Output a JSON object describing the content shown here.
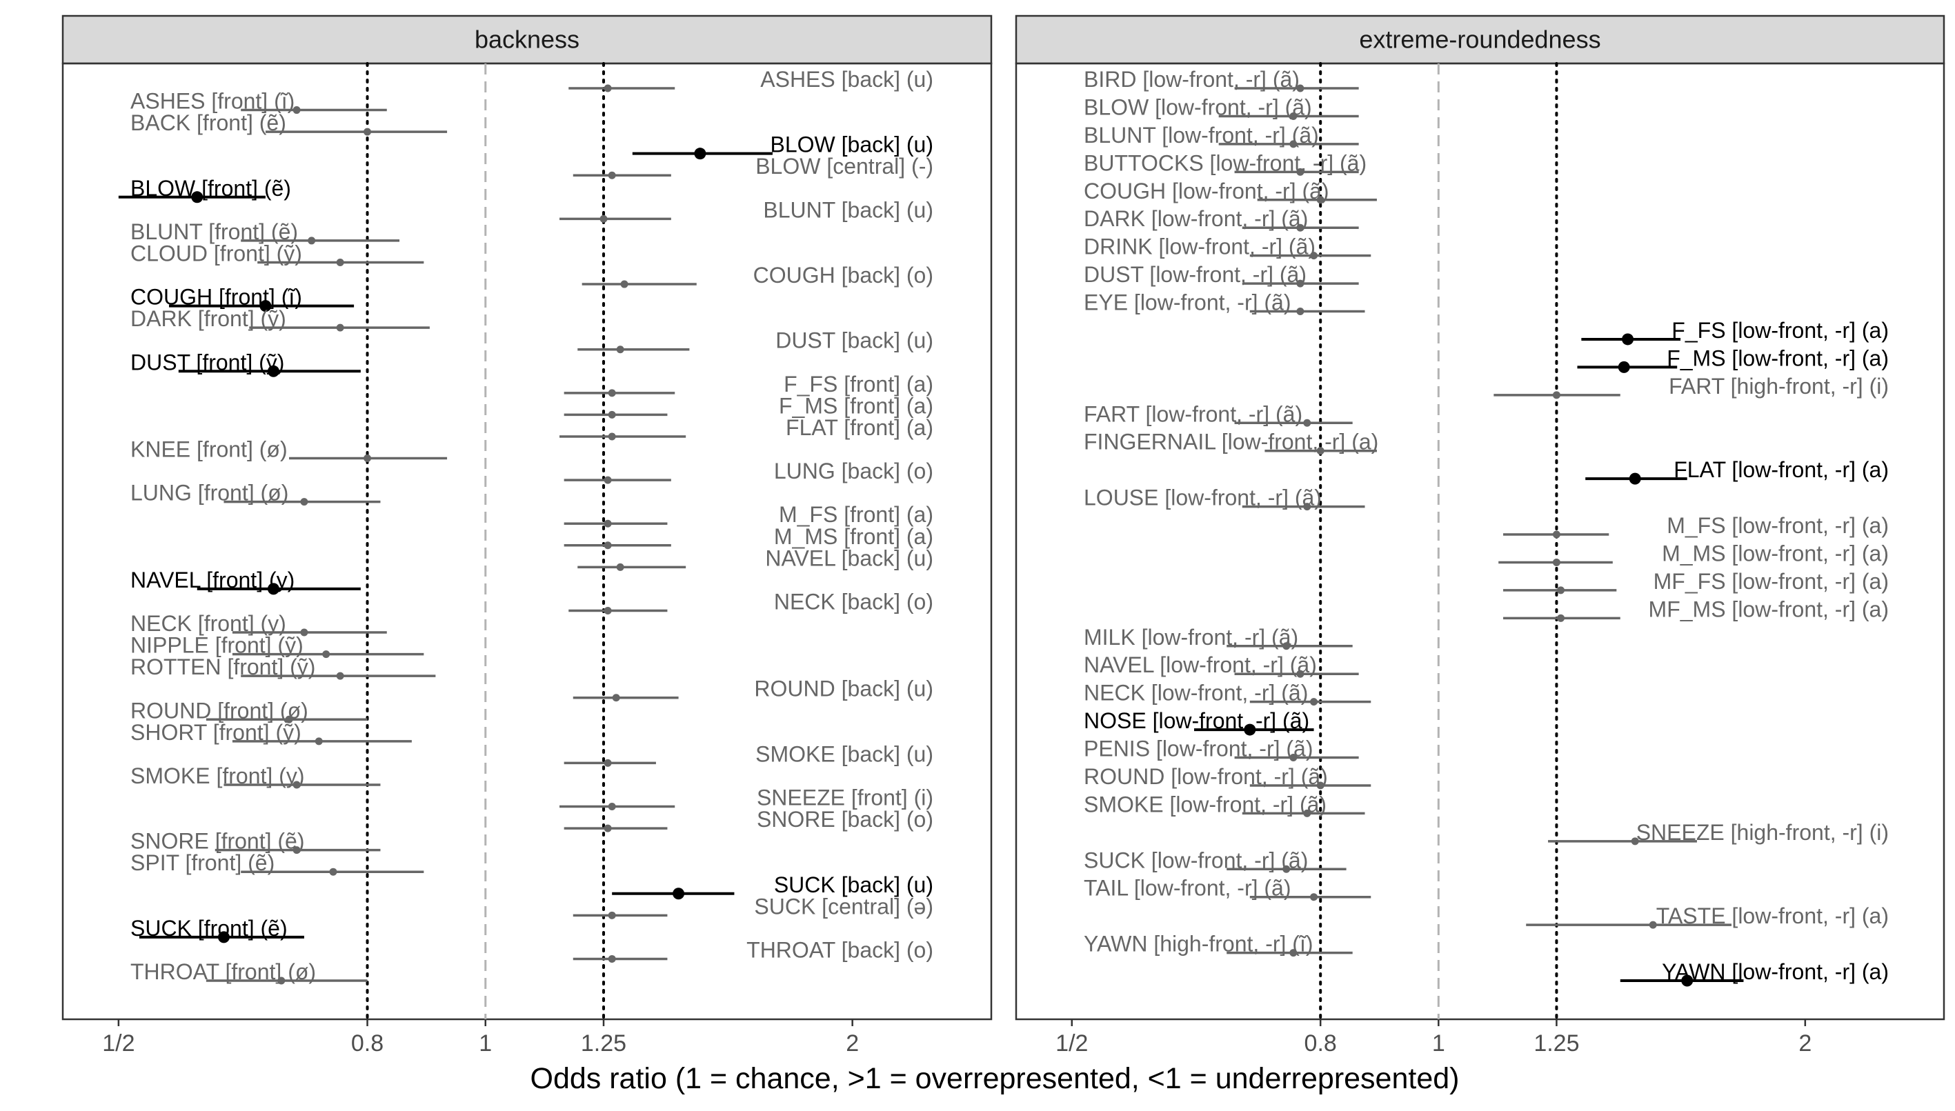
{
  "chart_data": {
    "type": "scatter",
    "xlabel": "Odds ratio (1 = chance, >1 = overrepresented, <1 = underrepresented)",
    "x_scale": "log",
    "x_range": [
      0.45,
      2.6
    ],
    "x_ticks": [
      {
        "value": 0.5,
        "label": "1/2"
      },
      {
        "value": 0.8,
        "label": "0.8"
      },
      {
        "value": 1.0,
        "label": "1"
      },
      {
        "value": 1.25,
        "label": "1.25"
      },
      {
        "value": 2.0,
        "label": "2"
      }
    ],
    "reference_lines": [
      {
        "value": 0.8,
        "style": "dotted"
      },
      {
        "value": 1.0,
        "style": "dashed"
      },
      {
        "value": 1.25,
        "style": "dotted"
      }
    ],
    "colors": {
      "highlight": "#000000",
      "normal": "#666666",
      "strip_fill": "#d9d9d9",
      "reference_dashed": "#b3b3b3"
    },
    "panels": [
      {
        "title": "backness",
        "points": [
          {
            "label": "ASHES [back] (u)",
            "or": 1.26,
            "lo": 1.17,
            "hi": 1.43,
            "side": "right",
            "bold": false
          },
          {
            "label": "ASHES [front] (ĩ)",
            "or": 0.7,
            "lo": 0.63,
            "hi": 0.83,
            "side": "left",
            "bold": false
          },
          {
            "label": "BACK [front] (ẽ)",
            "or": 0.8,
            "lo": 0.66,
            "hi": 0.93,
            "side": "left",
            "bold": false
          },
          {
            "label": "BLOW [back] (u)",
            "or": 1.5,
            "lo": 1.32,
            "hi": 1.72,
            "side": "right",
            "bold": true
          },
          {
            "label": "BLOW [central] (-)",
            "or": 1.27,
            "lo": 1.18,
            "hi": 1.42,
            "side": "right",
            "bold": false
          },
          {
            "label": "BLOW [front] (ẽ)",
            "or": 0.58,
            "lo": 0.5,
            "hi": 0.66,
            "side": "left",
            "bold": true
          },
          {
            "label": "BLUNT [back] (u)",
            "or": 1.25,
            "lo": 1.15,
            "hi": 1.42,
            "side": "right",
            "bold": false
          },
          {
            "label": "BLUNT [front] (ẽ)",
            "or": 0.72,
            "lo": 0.63,
            "hi": 0.85,
            "side": "left",
            "bold": false
          },
          {
            "label": "CLOUD [front] (ỹ)",
            "or": 0.76,
            "lo": 0.65,
            "hi": 0.89,
            "side": "left",
            "bold": false
          },
          {
            "label": "COUGH [back] (o)",
            "or": 1.3,
            "lo": 1.2,
            "hi": 1.49,
            "side": "right",
            "bold": false
          },
          {
            "label": "COUGH [front] (ĩ)",
            "or": 0.66,
            "lo": 0.55,
            "hi": 0.78,
            "side": "left",
            "bold": true
          },
          {
            "label": "DARK [front] (ỹ)",
            "or": 0.76,
            "lo": 0.64,
            "hi": 0.9,
            "side": "left",
            "bold": false
          },
          {
            "label": "DUST [back] (u)",
            "or": 1.29,
            "lo": 1.19,
            "hi": 1.47,
            "side": "right",
            "bold": false
          },
          {
            "label": "DUST [front] (ỹ)",
            "or": 0.67,
            "lo": 0.56,
            "hi": 0.79,
            "side": "left",
            "bold": true
          },
          {
            "label": "F_FS [front] (a)",
            "or": 1.27,
            "lo": 1.16,
            "hi": 1.43,
            "side": "right",
            "bold": false
          },
          {
            "label": "F_MS [front] (a)",
            "or": 1.27,
            "lo": 1.16,
            "hi": 1.41,
            "side": "right",
            "bold": false
          },
          {
            "label": "FLAT [front] (a)",
            "or": 1.27,
            "lo": 1.15,
            "hi": 1.46,
            "side": "right",
            "bold": false
          },
          {
            "label": "KNEE [front] (ø)",
            "or": 0.8,
            "lo": 0.69,
            "hi": 0.93,
            "side": "left",
            "bold": false
          },
          {
            "label": "LUNG [back] (o)",
            "or": 1.26,
            "lo": 1.16,
            "hi": 1.42,
            "side": "right",
            "bold": false
          },
          {
            "label": "LUNG [front] (ø)",
            "or": 0.71,
            "lo": 0.61,
            "hi": 0.82,
            "side": "left",
            "bold": false
          },
          {
            "label": "M_FS [front] (a)",
            "or": 1.26,
            "lo": 1.16,
            "hi": 1.41,
            "side": "right",
            "bold": false
          },
          {
            "label": "M_MS [front] (a)",
            "or": 1.26,
            "lo": 1.16,
            "hi": 1.42,
            "side": "right",
            "bold": false
          },
          {
            "label": "NAVEL [back] (u)",
            "or": 1.29,
            "lo": 1.19,
            "hi": 1.46,
            "side": "right",
            "bold": false
          },
          {
            "label": "NAVEL [front] (y)",
            "or": 0.67,
            "lo": 0.58,
            "hi": 0.79,
            "side": "left",
            "bold": true
          },
          {
            "label": "NECK [back] (o)",
            "or": 1.26,
            "lo": 1.17,
            "hi": 1.41,
            "side": "right",
            "bold": false
          },
          {
            "label": "NECK [front] (y)",
            "or": 0.71,
            "lo": 0.62,
            "hi": 0.83,
            "side": "left",
            "bold": false
          },
          {
            "label": "NIPPLE [front] (ỹ)",
            "or": 0.74,
            "lo": 0.62,
            "hi": 0.89,
            "side": "left",
            "bold": false
          },
          {
            "label": "ROTTEN [front] (ỹ)",
            "or": 0.76,
            "lo": 0.63,
            "hi": 0.91,
            "side": "left",
            "bold": false
          },
          {
            "label": "ROUND [back] (u)",
            "or": 1.28,
            "lo": 1.18,
            "hi": 1.44,
            "side": "right",
            "bold": false
          },
          {
            "label": "ROUND [front] (ø)",
            "or": 0.69,
            "lo": 0.59,
            "hi": 0.8,
            "side": "left",
            "bold": false
          },
          {
            "label": "SHORT [front] (ỹ)",
            "or": 0.73,
            "lo": 0.62,
            "hi": 0.87,
            "side": "left",
            "bold": false
          },
          {
            "label": "SMOKE [back] (u)",
            "or": 1.26,
            "lo": 1.16,
            "hi": 1.38,
            "side": "right",
            "bold": false
          },
          {
            "label": "SMOKE [front] (y)",
            "or": 0.7,
            "lo": 0.61,
            "hi": 0.82,
            "side": "left",
            "bold": false
          },
          {
            "label": "SNEEZE [front] (i)",
            "or": 1.27,
            "lo": 1.15,
            "hi": 1.43,
            "side": "right",
            "bold": false
          },
          {
            "label": "SNORE [back] (o)",
            "or": 1.26,
            "lo": 1.16,
            "hi": 1.41,
            "side": "right",
            "bold": false
          },
          {
            "label": "SNORE [front] (ẽ)",
            "or": 0.7,
            "lo": 0.6,
            "hi": 0.82,
            "side": "left",
            "bold": false
          },
          {
            "label": "SPIT [front] (ẽ)",
            "or": 0.75,
            "lo": 0.63,
            "hi": 0.89,
            "side": "left",
            "bold": false
          },
          {
            "label": "SUCK [back] (u)",
            "or": 1.44,
            "lo": 1.27,
            "hi": 1.6,
            "side": "right",
            "bold": true
          },
          {
            "label": "SUCK [central] (ə)",
            "or": 1.27,
            "lo": 1.18,
            "hi": 1.41,
            "side": "right",
            "bold": false
          },
          {
            "label": "SUCK [front] (ẽ)",
            "or": 0.61,
            "lo": 0.52,
            "hi": 0.71,
            "side": "left",
            "bold": true
          },
          {
            "label": "THROAT [back] (o)",
            "or": 1.27,
            "lo": 1.18,
            "hi": 1.41,
            "side": "right",
            "bold": false
          },
          {
            "label": "THROAT [front] (ø)",
            "or": 0.68,
            "lo": 0.59,
            "hi": 0.8,
            "side": "left",
            "bold": false
          }
        ]
      },
      {
        "title": "extreme-roundedness",
        "points": [
          {
            "label": "BIRD [low-front, -r] (ã)",
            "or": 0.77,
            "lo": 0.68,
            "hi": 0.86,
            "side": "right",
            "bold": false
          },
          {
            "label": "BLOW [low-front, -r] (ã)",
            "or": 0.76,
            "lo": 0.66,
            "hi": 0.86,
            "side": "right",
            "bold": false
          },
          {
            "label": "BLUNT [low-front, -r] (ã)",
            "or": 0.76,
            "lo": 0.66,
            "hi": 0.86,
            "side": "right",
            "bold": false
          },
          {
            "label": "BUTTOCKS [low-front, -r] (ã)",
            "or": 0.77,
            "lo": 0.68,
            "hi": 0.86,
            "side": "right",
            "bold": false
          },
          {
            "label": "COUGH [low-front, -r] (ã)",
            "or": 0.8,
            "lo": 0.71,
            "hi": 0.89,
            "side": "right",
            "bold": false
          },
          {
            "label": "DARK [low-front, -r] (ã)",
            "or": 0.77,
            "lo": 0.69,
            "hi": 0.86,
            "side": "right",
            "bold": false
          },
          {
            "label": "DRINK [low-front, -r] (ã)",
            "or": 0.79,
            "lo": 0.7,
            "hi": 0.88,
            "side": "right",
            "bold": false
          },
          {
            "label": "DUST [low-front, -r] (ã)",
            "or": 0.77,
            "lo": 0.69,
            "hi": 0.86,
            "side": "right",
            "bold": false
          },
          {
            "label": "EYE [low-front, -r] (ã)",
            "or": 0.77,
            "lo": 0.7,
            "hi": 0.87,
            "side": "right",
            "bold": false
          },
          {
            "label": "F_FS [low-front, -r] (a)",
            "or": 1.43,
            "lo": 1.31,
            "hi": 1.58,
            "side": "right",
            "bold": true
          },
          {
            "label": "F_MS [low-front, -r] (a)",
            "or": 1.42,
            "lo": 1.3,
            "hi": 1.57,
            "side": "right",
            "bold": true
          },
          {
            "label": "FART [high-front, -r] (i)",
            "or": 1.25,
            "lo": 1.11,
            "hi": 1.41,
            "side": "right",
            "bold": false
          },
          {
            "label": "FART [low-front, -r] (ã)",
            "or": 0.78,
            "lo": 0.68,
            "hi": 0.85,
            "side": "right",
            "bold": false
          },
          {
            "label": "FINGERNAIL [low-front, -r] (a)",
            "or": 0.8,
            "lo": 0.72,
            "hi": 0.89,
            "side": "right",
            "bold": false
          },
          {
            "label": "FLAT [low-front, -r] (a)",
            "or": 1.45,
            "lo": 1.32,
            "hi": 1.6,
            "side": "right",
            "bold": true
          },
          {
            "label": "LOUSE [low-front, -r] (ã)",
            "or": 0.78,
            "lo": 0.69,
            "hi": 0.87,
            "side": "right",
            "bold": false
          },
          {
            "label": "M_FS [low-front, -r] (a)",
            "or": 1.25,
            "lo": 1.13,
            "hi": 1.38,
            "side": "right",
            "bold": false
          },
          {
            "label": "M_MS [low-front, -r] (a)",
            "or": 1.25,
            "lo": 1.12,
            "hi": 1.39,
            "side": "right",
            "bold": false
          },
          {
            "label": "MF_FS [low-front, -r] (a)",
            "or": 1.26,
            "lo": 1.13,
            "hi": 1.4,
            "side": "right",
            "bold": false
          },
          {
            "label": "MF_MS [low-front, -r] (a)",
            "or": 1.26,
            "lo": 1.13,
            "hi": 1.41,
            "side": "right",
            "bold": false
          },
          {
            "label": "MILK [low-front, -r] (ã)",
            "or": 0.75,
            "lo": 0.67,
            "hi": 0.85,
            "side": "right",
            "bold": false
          },
          {
            "label": "NAVEL [low-front, -r] (ã)",
            "or": 0.77,
            "lo": 0.68,
            "hi": 0.86,
            "side": "right",
            "bold": false
          },
          {
            "label": "NECK [low-front, -r] (ã)",
            "or": 0.79,
            "lo": 0.7,
            "hi": 0.88,
            "side": "right",
            "bold": false
          },
          {
            "label": "NOSE [low-front, -r] (ã)",
            "or": 0.7,
            "lo": 0.63,
            "hi": 0.79,
            "side": "right",
            "bold": true
          },
          {
            "label": "PENIS [low-front, -r] (ã)",
            "or": 0.76,
            "lo": 0.68,
            "hi": 0.86,
            "side": "right",
            "bold": false
          },
          {
            "label": "ROUND [low-front, -r] (ã)",
            "or": 0.8,
            "lo": 0.7,
            "hi": 0.88,
            "side": "right",
            "bold": false
          },
          {
            "label": "SMOKE [low-front, -r] (ã)",
            "or": 0.78,
            "lo": 0.69,
            "hi": 0.87,
            "side": "right",
            "bold": false
          },
          {
            "label": "SNEEZE [high-front, -r] (i)",
            "or": 1.45,
            "lo": 1.23,
            "hi": 1.63,
            "side": "right",
            "bold": false
          },
          {
            "label": "SUCK [low-front, -r] (ã)",
            "or": 0.75,
            "lo": 0.67,
            "hi": 0.84,
            "side": "right",
            "bold": false
          },
          {
            "label": "TAIL [low-front, -r] (ã)",
            "or": 0.79,
            "lo": 0.7,
            "hi": 0.88,
            "side": "right",
            "bold": false
          },
          {
            "label": "TASTE [low-front, -r] (a)",
            "or": 1.5,
            "lo": 1.18,
            "hi": 1.74,
            "side": "right",
            "bold": false
          },
          {
            "label": "YAWN [high-front, -r] (ĩ)",
            "or": 0.76,
            "lo": 0.67,
            "hi": 0.85,
            "side": "right",
            "bold": false
          },
          {
            "label": "YAWN [low-front, -r] (a)",
            "or": 1.6,
            "lo": 1.41,
            "hi": 1.78,
            "side": "right",
            "bold": true
          }
        ]
      }
    ]
  }
}
